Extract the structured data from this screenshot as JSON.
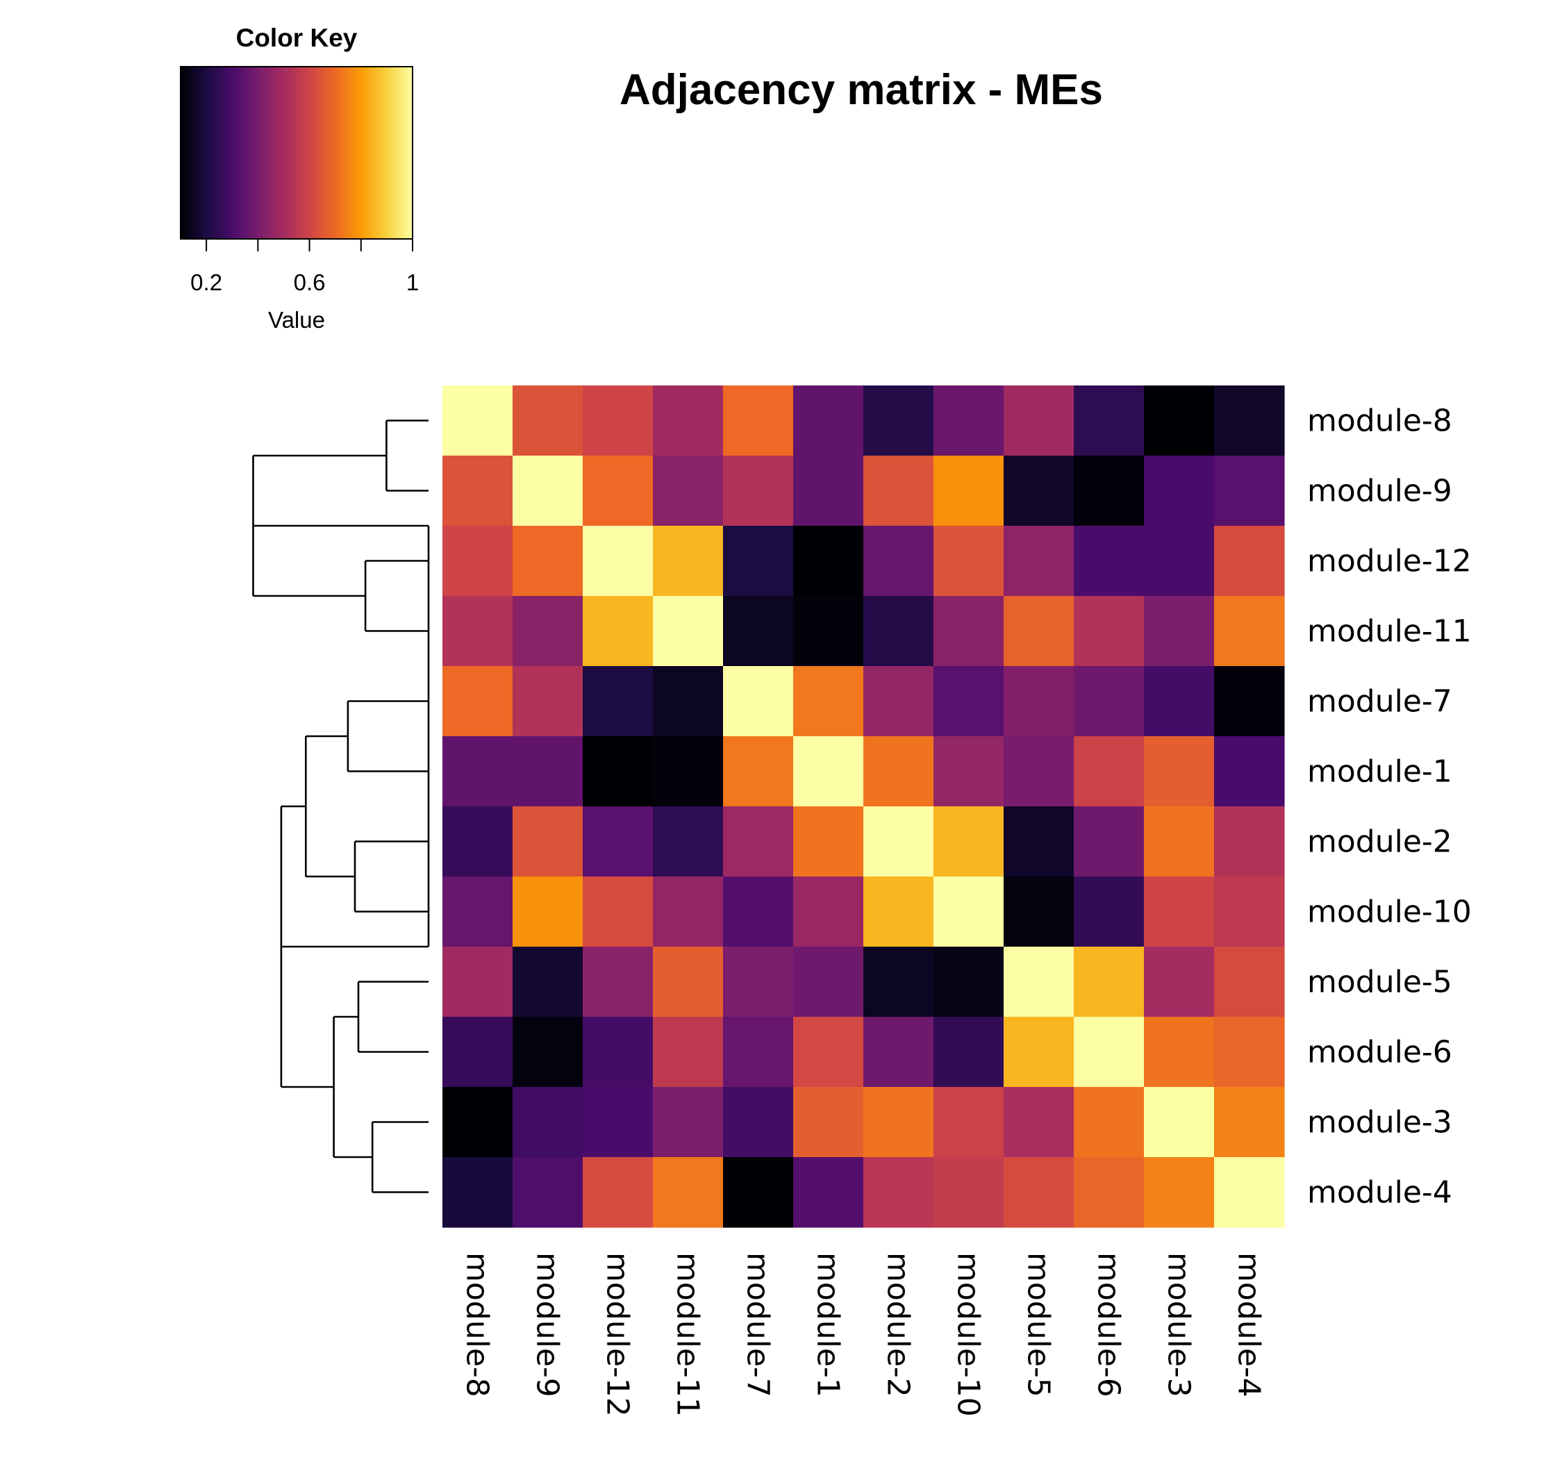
{
  "chart_data": {
    "type": "heatmap",
    "title": "Adjacency matrix - MEs",
    "rows": [
      "module-8",
      "module-9",
      "module-12",
      "module-11",
      "module-7",
      "module-1",
      "module-2",
      "module-10",
      "module-5",
      "module-6",
      "module-3",
      "module-4"
    ],
    "columns": [
      "module-8",
      "module-9",
      "module-12",
      "module-11",
      "module-7",
      "module-1",
      "module-2",
      "module-10",
      "module-5",
      "module-6",
      "module-3",
      "module-4"
    ],
    "values": [
      [
        1.0,
        0.64,
        0.6,
        0.49,
        0.7,
        0.35,
        0.22,
        0.37,
        0.49,
        0.24,
        0.1,
        0.16
      ],
      [
        0.64,
        1.0,
        0.7,
        0.44,
        0.53,
        0.35,
        0.64,
        0.78,
        0.16,
        0.11,
        0.3,
        0.33
      ],
      [
        0.6,
        0.7,
        1.0,
        0.85,
        0.2,
        0.09,
        0.36,
        0.64,
        0.45,
        0.3,
        0.3,
        0.62
      ],
      [
        0.53,
        0.44,
        0.85,
        1.0,
        0.15,
        0.11,
        0.22,
        0.44,
        0.68,
        0.53,
        0.41,
        0.73
      ],
      [
        0.7,
        0.53,
        0.2,
        0.15,
        1.0,
        0.73,
        0.46,
        0.33,
        0.42,
        0.38,
        0.29,
        0.11
      ],
      [
        0.35,
        0.35,
        0.09,
        0.11,
        0.73,
        1.0,
        0.72,
        0.46,
        0.4,
        0.59,
        0.67,
        0.3
      ],
      [
        0.26,
        0.64,
        0.33,
        0.24,
        0.48,
        0.72,
        1.0,
        0.85,
        0.16,
        0.38,
        0.72,
        0.53
      ],
      [
        0.36,
        0.78,
        0.62,
        0.46,
        0.32,
        0.47,
        0.85,
        1.0,
        0.12,
        0.25,
        0.6,
        0.56
      ],
      [
        0.49,
        0.17,
        0.44,
        0.67,
        0.41,
        0.38,
        0.15,
        0.13,
        1.0,
        0.85,
        0.5,
        0.62
      ],
      [
        0.26,
        0.12,
        0.29,
        0.56,
        0.36,
        0.61,
        0.38,
        0.25,
        0.85,
        1.0,
        0.72,
        0.69
      ],
      [
        0.1,
        0.28,
        0.3,
        0.41,
        0.29,
        0.67,
        0.72,
        0.59,
        0.51,
        0.72,
        1.0,
        0.75
      ],
      [
        0.19,
        0.31,
        0.62,
        0.73,
        0.1,
        0.32,
        0.55,
        0.57,
        0.62,
        0.69,
        0.75,
        1.0
      ]
    ],
    "colorscale": {
      "name": "inferno",
      "stops": [
        "#000004",
        "#1b0c41",
        "#4a0c6b",
        "#781c6d",
        "#a52c60",
        "#cf4446",
        "#ed6925",
        "#fb9b06",
        "#f7d13d",
        "#fcffa4"
      ],
      "range": [
        0.1,
        1.0
      ]
    },
    "color_key": {
      "title": "Color Key",
      "xlabel": "Value",
      "ticks": [
        "0.2",
        "0.6",
        "1"
      ],
      "tick_values": [
        0.2,
        0.6,
        1.0
      ],
      "minor_tick_values": [
        0.4,
        0.8
      ]
    },
    "row_dendrogram": true,
    "legend_position": "top-left"
  }
}
